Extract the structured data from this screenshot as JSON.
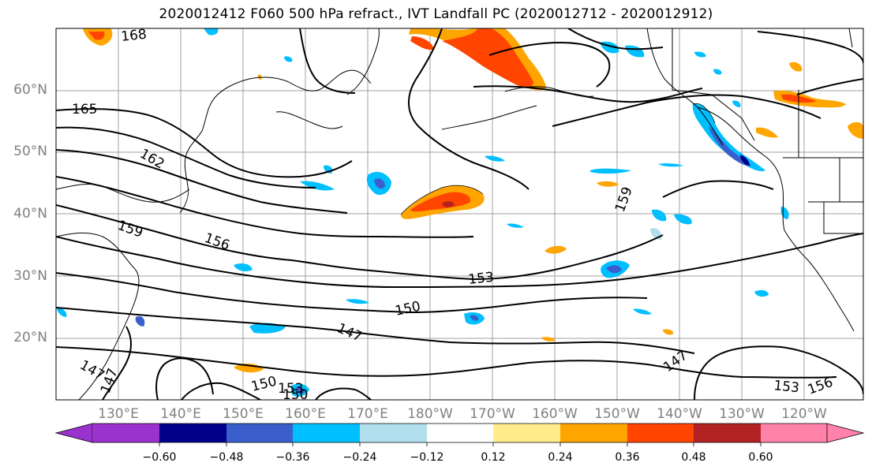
{
  "title": "2020012412 F060 500 hPa refract., IVT Landfall PC (2020012712 - 2020012912)",
  "lat_labels": [
    "60°N",
    "50°N",
    "40°N",
    "30°N",
    "20°N"
  ],
  "lon_labels": [
    "130°E",
    "140°E",
    "150°E",
    "160°E",
    "170°E",
    "180°W",
    "170°W",
    "160°W",
    "150°W",
    "140°W",
    "130°W",
    "120°W"
  ],
  "colorbar": {
    "ticks": [
      "−0.60",
      "−0.48",
      "−0.36",
      "−0.24",
      "−0.12",
      "0.12",
      "0.24",
      "0.36",
      "0.48",
      "0.60"
    ],
    "colors": [
      "#9a32cd",
      "#00008b",
      "#3a5fcd",
      "#00bfff",
      "#b2dfee",
      "#ffffff",
      "#ffec8b",
      "#ffa500",
      "#ff4500",
      "#b22222",
      "#ff82ab"
    ]
  },
  "contour_labels": [
    "168",
    "165",
    "162",
    "159",
    "156",
    "153",
    "150",
    "147",
    "159",
    "147",
    "153",
    "156",
    "150",
    "153",
    "150",
    "147",
    "147"
  ]
}
